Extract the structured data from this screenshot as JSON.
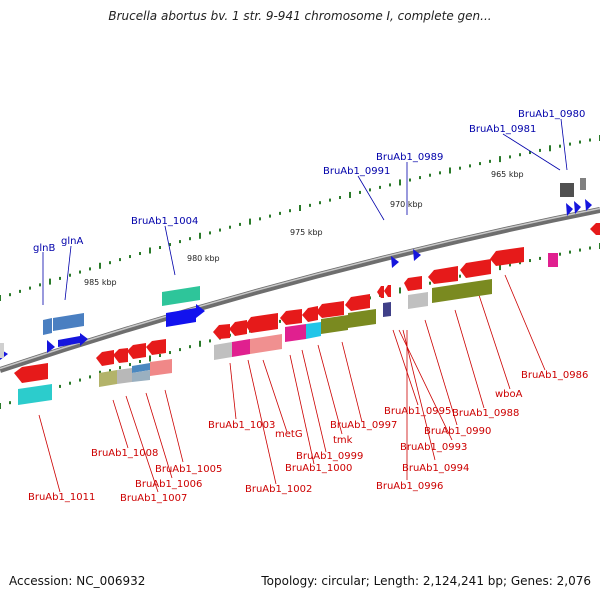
{
  "header": {
    "title": "Brucella abortus bv. 1 str. 9-941 chromosome I, complete gen..."
  },
  "footer": {
    "accession": "Accession: NC_006932",
    "summary": "Topology: circular; Length: 2,124,241 bp; Genes: 2,076"
  },
  "colors": {
    "plus_label": "#0000aa",
    "minus_label": "#cc0000",
    "backbone": "#808080",
    "tick": "#2a7a2a"
  },
  "position_ticks": [
    "985 kbp",
    "980 kbp",
    "975 kbp",
    "970 kbp",
    "965 kbp"
  ],
  "plus_labels": [
    "BruAb1_0980",
    "BruAb1_0981",
    "BruAb1_0989",
    "BruAb1_0991",
    "BruAb1_1004",
    "glnA",
    "glnB"
  ],
  "minus_labels": [
    "BruAb1_0986",
    "wboA",
    "BruAb1_0988",
    "BruAb1_0990",
    "BruAb1_0995",
    "BruAb1_0993",
    "BruAb1_0994",
    "BruAb1_0996",
    "BruAb1_0997",
    "tmk",
    "BruAb1_0999",
    "BruAb1_1000",
    "metG",
    "BruAb1_1003",
    "BruAb1_1002",
    "BruAb1_1005",
    "BruAb1_1006",
    "BruAb1_1007",
    "BruAb1_1008",
    "BruAb1_1011"
  ]
}
